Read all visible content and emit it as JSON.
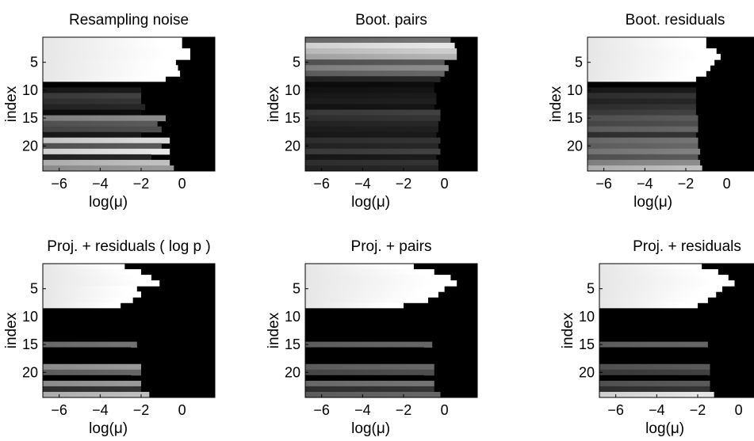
{
  "figure": {
    "background": "#ffffff"
  },
  "chart_data": [
    {
      "type": "heatmap",
      "title": "Resampling noise",
      "xlabel": "log(μ)",
      "ylabel": "index",
      "xlim": [
        -6.8,
        1.6
      ],
      "ylim": [
        1,
        24
      ],
      "xticks": [
        -6,
        -4,
        -2,
        0
      ],
      "xtick_labels": [
        "−6",
        "−4",
        "−2",
        "0"
      ],
      "yticks": [
        5,
        10,
        15,
        20
      ],
      "colormap": "gray",
      "rows": [
        {
          "index": 1,
          "level": 1.0,
          "edge": 0.0
        },
        {
          "index": 2,
          "level": 1.0,
          "edge": 0.0
        },
        {
          "index": 3,
          "level": 1.0,
          "edge": 0.4
        },
        {
          "index": 4,
          "level": 1.0,
          "edge": 0.4
        },
        {
          "index": 5,
          "level": 1.0,
          "edge": -0.3
        },
        {
          "index": 6,
          "level": 1.0,
          "edge": -0.2
        },
        {
          "index": 7,
          "level": 1.0,
          "edge": -0.1
        },
        {
          "index": 8,
          "level": 1.0,
          "edge": -0.8
        },
        {
          "index": 9,
          "level": 0.0,
          "edge": -0.8
        },
        {
          "index": 10,
          "level": 0.1,
          "edge": -2.0
        },
        {
          "index": 11,
          "level": 0.25,
          "edge": -2.0
        },
        {
          "index": 12,
          "level": 0.2,
          "edge": -2.0
        },
        {
          "index": 13,
          "level": 0.15,
          "edge": -1.8
        },
        {
          "index": 14,
          "level": 0.05,
          "edge": -2.0
        },
        {
          "index": 15,
          "level": 0.55,
          "edge": -0.8
        },
        {
          "index": 16,
          "level": 0.35,
          "edge": -1.2
        },
        {
          "index": 17,
          "level": 0.3,
          "edge": -1.0
        },
        {
          "index": 18,
          "level": 0.1,
          "edge": -2.0
        },
        {
          "index": 19,
          "level": 0.85,
          "edge": -0.6
        },
        {
          "index": 20,
          "level": 0.35,
          "edge": -1.0
        },
        {
          "index": 21,
          "level": 0.9,
          "edge": -0.6
        },
        {
          "index": 22,
          "level": 0.15,
          "edge": -1.5
        },
        {
          "index": 23,
          "level": 0.75,
          "edge": -0.6
        },
        {
          "index": 24,
          "level": 0.6,
          "edge": -0.4
        }
      ]
    },
    {
      "type": "heatmap",
      "title": "Boot. pairs",
      "xlabel": "log(μ)",
      "ylabel": "index",
      "xlim": [
        -6.8,
        1.6
      ],
      "ylim": [
        1,
        24
      ],
      "xticks": [
        -6,
        -4,
        -2,
        0
      ],
      "xtick_labels": [
        "−6",
        "−4",
        "−2",
        "0"
      ],
      "yticks": [
        5,
        10,
        15,
        20
      ],
      "colormap": "gray",
      "rows": [
        {
          "index": 1,
          "level": 0.45,
          "edge": 0.3
        },
        {
          "index": 2,
          "level": 0.9,
          "edge": 0.5
        },
        {
          "index": 3,
          "level": 0.8,
          "edge": 0.6
        },
        {
          "index": 4,
          "level": 0.7,
          "edge": 0.6
        },
        {
          "index": 5,
          "level": 0.35,
          "edge": 0.0
        },
        {
          "index": 6,
          "level": 0.55,
          "edge": 0.2
        },
        {
          "index": 7,
          "level": 0.4,
          "edge": 0.0
        },
        {
          "index": 8,
          "level": 0.15,
          "edge": -0.2
        },
        {
          "index": 9,
          "level": 0.05,
          "edge": -0.5
        },
        {
          "index": 10,
          "level": 0.08,
          "edge": -0.5
        },
        {
          "index": 11,
          "level": 0.1,
          "edge": -0.4
        },
        {
          "index": 12,
          "level": 0.12,
          "edge": -0.4
        },
        {
          "index": 13,
          "level": 0.08,
          "edge": -0.5
        },
        {
          "index": 14,
          "level": 0.25,
          "edge": -0.2
        },
        {
          "index": 15,
          "level": 0.2,
          "edge": -0.2
        },
        {
          "index": 16,
          "level": 0.15,
          "edge": -0.3
        },
        {
          "index": 17,
          "level": 0.12,
          "edge": -0.3
        },
        {
          "index": 18,
          "level": 0.1,
          "edge": -0.4
        },
        {
          "index": 19,
          "level": 0.2,
          "edge": -0.2
        },
        {
          "index": 20,
          "level": 0.15,
          "edge": -0.3
        },
        {
          "index": 21,
          "level": 0.25,
          "edge": -0.2
        },
        {
          "index": 22,
          "level": 0.1,
          "edge": -0.4
        },
        {
          "index": 23,
          "level": 0.2,
          "edge": -0.3
        },
        {
          "index": 24,
          "level": 0.15,
          "edge": -0.3
        }
      ]
    },
    {
      "type": "heatmap",
      "title": "Boot. residuals",
      "xlabel": "log(μ)",
      "ylabel": "index",
      "xlim": [
        -6.8,
        1.6
      ],
      "ylim": [
        1,
        24
      ],
      "xticks": [
        -6,
        -4,
        -2,
        0
      ],
      "xtick_labels": [
        "−6",
        "−4",
        "−2",
        "0"
      ],
      "yticks": [
        5,
        10,
        15,
        20
      ],
      "colormap": "gray",
      "rows": [
        {
          "index": 1,
          "level": 1.0,
          "edge": -1.0
        },
        {
          "index": 2,
          "level": 1.0,
          "edge": -1.0
        },
        {
          "index": 3,
          "level": 1.0,
          "edge": -0.5
        },
        {
          "index": 4,
          "level": 1.0,
          "edge": -0.3
        },
        {
          "index": 5,
          "level": 1.0,
          "edge": -0.6
        },
        {
          "index": 6,
          "level": 1.0,
          "edge": -0.8
        },
        {
          "index": 7,
          "level": 1.0,
          "edge": -1.0
        },
        {
          "index": 8,
          "level": 1.0,
          "edge": -1.5
        },
        {
          "index": 9,
          "level": 0.0,
          "edge": -1.5
        },
        {
          "index": 10,
          "level": 0.1,
          "edge": -1.5
        },
        {
          "index": 11,
          "level": 0.2,
          "edge": -1.5
        },
        {
          "index": 12,
          "level": 0.15,
          "edge": -1.5
        },
        {
          "index": 13,
          "level": 0.2,
          "edge": -1.5
        },
        {
          "index": 14,
          "level": 0.25,
          "edge": -1.5
        },
        {
          "index": 15,
          "level": 0.35,
          "edge": -1.4
        },
        {
          "index": 16,
          "level": 0.3,
          "edge": -1.4
        },
        {
          "index": 17,
          "level": 0.4,
          "edge": -1.4
        },
        {
          "index": 18,
          "level": 0.2,
          "edge": -1.5
        },
        {
          "index": 19,
          "level": 0.45,
          "edge": -1.4
        },
        {
          "index": 20,
          "level": 0.4,
          "edge": -1.4
        },
        {
          "index": 21,
          "level": 0.5,
          "edge": -1.3
        },
        {
          "index": 22,
          "level": 0.35,
          "edge": -1.4
        },
        {
          "index": 23,
          "level": 0.55,
          "edge": -1.3
        },
        {
          "index": 24,
          "level": 0.75,
          "edge": -1.2
        }
      ]
    },
    {
      "type": "heatmap",
      "title": "Proj. + residuals ( log p )",
      "xlabel": "log(μ)",
      "ylabel": "index",
      "xlim": [
        -6.8,
        1.6
      ],
      "ylim": [
        1,
        24
      ],
      "xticks": [
        -6,
        -4,
        -2,
        0
      ],
      "xtick_labels": [
        "−6",
        "−4",
        "−2",
        "0"
      ],
      "yticks": [
        5,
        10,
        15,
        20
      ],
      "colormap": "gray",
      "rows": [
        {
          "index": 1,
          "level": 1.0,
          "edge": -2.8
        },
        {
          "index": 2,
          "level": 1.0,
          "edge": -2.0
        },
        {
          "index": 3,
          "level": 1.0,
          "edge": -1.5
        },
        {
          "index": 4,
          "level": 1.0,
          "edge": -1.1
        },
        {
          "index": 5,
          "level": 1.0,
          "edge": -2.2
        },
        {
          "index": 6,
          "level": 1.0,
          "edge": -2.0
        },
        {
          "index": 7,
          "level": 1.0,
          "edge": -2.4
        },
        {
          "index": 8,
          "level": 1.0,
          "edge": -3.0
        },
        {
          "index": 9,
          "level": 0.0,
          "edge": -3.0
        },
        {
          "index": 10,
          "level": 0.0,
          "edge": -2.5
        },
        {
          "index": 11,
          "level": 0.0,
          "edge": -2.5
        },
        {
          "index": 12,
          "level": 0.0,
          "edge": -2.5
        },
        {
          "index": 13,
          "level": 0.0,
          "edge": -2.5
        },
        {
          "index": 14,
          "level": 0.0,
          "edge": -2.5
        },
        {
          "index": 15,
          "level": 0.45,
          "edge": -2.2
        },
        {
          "index": 16,
          "level": 0.0,
          "edge": -2.5
        },
        {
          "index": 17,
          "level": 0.0,
          "edge": -2.5
        },
        {
          "index": 18,
          "level": 0.0,
          "edge": -2.5
        },
        {
          "index": 19,
          "level": 0.6,
          "edge": -2.0
        },
        {
          "index": 20,
          "level": 0.4,
          "edge": -2.0
        },
        {
          "index": 21,
          "level": 0.0,
          "edge": -2.5
        },
        {
          "index": 22,
          "level": 0.6,
          "edge": -2.0
        },
        {
          "index": 23,
          "level": 0.2,
          "edge": -2.0
        },
        {
          "index": 24,
          "level": 0.75,
          "edge": -1.6
        }
      ]
    },
    {
      "type": "heatmap",
      "title": "Proj. + pairs",
      "xlabel": "log(μ)",
      "ylabel": "index",
      "xlim": [
        -6.8,
        1.6
      ],
      "ylim": [
        1,
        24
      ],
      "xticks": [
        -6,
        -4,
        -2,
        0
      ],
      "xtick_labels": [
        "−6",
        "−4",
        "−2",
        "0"
      ],
      "yticks": [
        5,
        10,
        15,
        20
      ],
      "colormap": "gray",
      "rows": [
        {
          "index": 1,
          "level": 1.0,
          "edge": -1.5
        },
        {
          "index": 2,
          "level": 1.0,
          "edge": -0.5
        },
        {
          "index": 3,
          "level": 1.0,
          "edge": 0.3
        },
        {
          "index": 4,
          "level": 1.0,
          "edge": 0.6
        },
        {
          "index": 5,
          "level": 1.0,
          "edge": 0.0
        },
        {
          "index": 6,
          "level": 1.0,
          "edge": -0.3
        },
        {
          "index": 7,
          "level": 1.0,
          "edge": -0.8
        },
        {
          "index": 8,
          "level": 1.0,
          "edge": -2.0
        },
        {
          "index": 9,
          "level": 0.0,
          "edge": -2.0
        },
        {
          "index": 10,
          "level": 0.0,
          "edge": -1.0
        },
        {
          "index": 11,
          "level": 0.0,
          "edge": -1.0
        },
        {
          "index": 12,
          "level": 0.0,
          "edge": -1.0
        },
        {
          "index": 13,
          "level": 0.0,
          "edge": -1.0
        },
        {
          "index": 14,
          "level": 0.0,
          "edge": -1.0
        },
        {
          "index": 15,
          "level": 0.4,
          "edge": -0.6
        },
        {
          "index": 16,
          "level": 0.0,
          "edge": -1.0
        },
        {
          "index": 17,
          "level": 0.0,
          "edge": -1.0
        },
        {
          "index": 18,
          "level": 0.0,
          "edge": -1.0
        },
        {
          "index": 19,
          "level": 0.4,
          "edge": -0.5
        },
        {
          "index": 20,
          "level": 0.3,
          "edge": -0.5
        },
        {
          "index": 21,
          "level": 0.0,
          "edge": -1.0
        },
        {
          "index": 22,
          "level": 0.45,
          "edge": -0.5
        },
        {
          "index": 23,
          "level": 0.2,
          "edge": -0.5
        },
        {
          "index": 24,
          "level": 0.4,
          "edge": -0.2
        }
      ]
    },
    {
      "type": "heatmap",
      "title": "Proj. + residuals",
      "xlabel": "log(μ)",
      "ylabel": "index",
      "xlim": [
        -6.8,
        1.6
      ],
      "ylim": [
        1,
        24
      ],
      "xticks": [
        -6,
        -4,
        -2,
        0
      ],
      "xtick_labels": [
        "−6",
        "−4",
        "−2",
        "0"
      ],
      "yticks": [
        5,
        10,
        15,
        20
      ],
      "colormap": "gray",
      "rows": [
        {
          "index": 1,
          "level": 1.0,
          "edge": -1.8
        },
        {
          "index": 2,
          "level": 1.0,
          "edge": -1.0
        },
        {
          "index": 3,
          "level": 1.0,
          "edge": -0.5
        },
        {
          "index": 4,
          "level": 1.0,
          "edge": -0.2
        },
        {
          "index": 5,
          "level": 1.0,
          "edge": -0.8
        },
        {
          "index": 6,
          "level": 1.0,
          "edge": -1.1
        },
        {
          "index": 7,
          "level": 1.0,
          "edge": -1.5
        },
        {
          "index": 8,
          "level": 1.0,
          "edge": -2.0
        },
        {
          "index": 9,
          "level": 0.0,
          "edge": -2.0
        },
        {
          "index": 10,
          "level": 0.0,
          "edge": -1.5
        },
        {
          "index": 11,
          "level": 0.0,
          "edge": -1.5
        },
        {
          "index": 12,
          "level": 0.0,
          "edge": -1.5
        },
        {
          "index": 13,
          "level": 0.0,
          "edge": -1.5
        },
        {
          "index": 14,
          "level": 0.0,
          "edge": -1.5
        },
        {
          "index": 15,
          "level": 0.4,
          "edge": -1.5
        },
        {
          "index": 16,
          "level": 0.0,
          "edge": -1.5
        },
        {
          "index": 17,
          "level": 0.0,
          "edge": -1.5
        },
        {
          "index": 18,
          "level": 0.0,
          "edge": -1.5
        },
        {
          "index": 19,
          "level": 0.35,
          "edge": -1.4
        },
        {
          "index": 20,
          "level": 0.25,
          "edge": -1.4
        },
        {
          "index": 21,
          "level": 0.0,
          "edge": -1.5
        },
        {
          "index": 22,
          "level": 0.35,
          "edge": -1.4
        },
        {
          "index": 23,
          "level": 0.2,
          "edge": -1.4
        },
        {
          "index": 24,
          "level": 0.9,
          "edge": -1.2
        }
      ]
    }
  ]
}
